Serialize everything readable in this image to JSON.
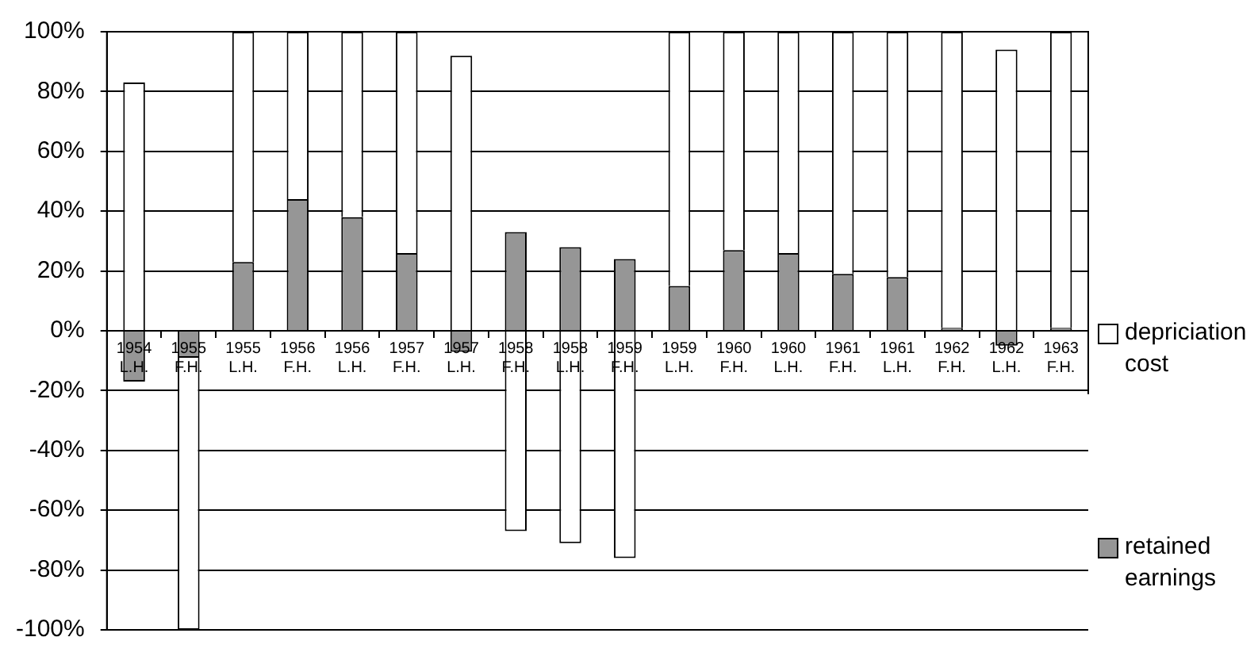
{
  "chart_data": {
    "type": "bar",
    "stacked": true,
    "categories": [
      "1954 L.H.",
      "1955 F.H.",
      "1955 L.H.",
      "1956 F.H.",
      "1956 L.H.",
      "1957 F.H.",
      "1957 L.H.",
      "1958 F.H.",
      "1958 L.H.",
      "1959 F.H.",
      "1959 L.H.",
      "1960 F.H.",
      "1960 L.H.",
      "1961 F.H.",
      "1961 L.H.",
      "1962 F.H.",
      "1962 L.H.",
      "1963 F.H."
    ],
    "series": [
      {
        "name": "retained earnings",
        "color": "#969696",
        "values": [
          -17,
          -9,
          23,
          44,
          38,
          26,
          -7,
          33,
          28,
          24,
          15,
          27,
          26,
          19,
          18,
          1,
          -5,
          1
        ]
      },
      {
        "name": "depriciation cost",
        "color": "#ffffff",
        "values": [
          83,
          -91,
          77,
          56,
          62,
          74,
          92,
          -67,
          -71,
          -76,
          85,
          73,
          74,
          81,
          82,
          99,
          94,
          99
        ]
      }
    ],
    "ylim": [
      -100,
      100
    ],
    "yticks": [
      {
        "value": -100,
        "label": "-100%"
      },
      {
        "value": -80,
        "label": "-80%"
      },
      {
        "value": -60,
        "label": "-60%"
      },
      {
        "value": -40,
        "label": "-40%"
      },
      {
        "value": -20,
        "label": "-20%"
      },
      {
        "value": 0,
        "label": "0%"
      },
      {
        "value": 20,
        "label": "20%"
      },
      {
        "value": 40,
        "label": "40%"
      },
      {
        "value": 60,
        "label": "60%"
      },
      {
        "value": 80,
        "label": "80%"
      },
      {
        "value": 100,
        "label": "100%"
      }
    ],
    "grid": "y",
    "legend": "right"
  }
}
